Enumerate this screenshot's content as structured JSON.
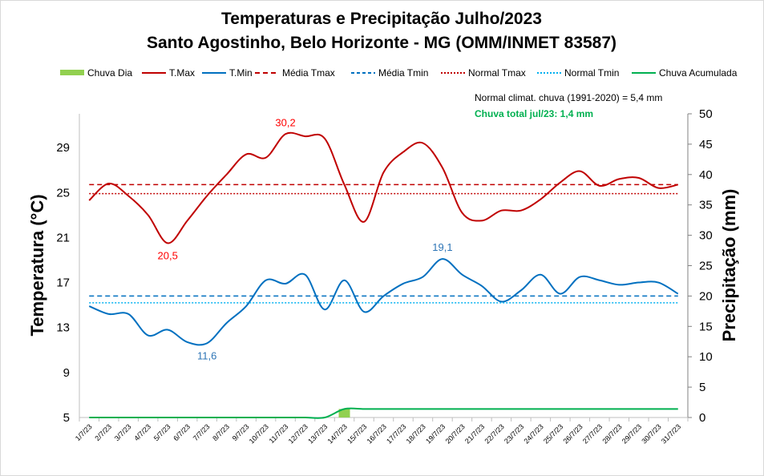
{
  "chart_data": {
    "type": "line",
    "title": "Temperaturas e Precipitação Julho/2023",
    "subtitle": "Santo Agostinho, Belo Horizonte - MG (OMM/INMET 83587)",
    "ylabel": "Temperatura (°C)",
    "y2label": "Precipitação (mm)",
    "ylim": [
      5,
      32
    ],
    "y2lim": [
      0,
      50
    ],
    "yticks": [
      5,
      9,
      13,
      17,
      21,
      25,
      29
    ],
    "y2ticks": [
      0,
      5,
      10,
      15,
      20,
      25,
      30,
      35,
      40,
      45,
      50
    ],
    "categories": [
      "1/7/23",
      "2/7/23",
      "3/7/23",
      "4/7/23",
      "5/7/23",
      "6/7/23",
      "7/7/23",
      "8/7/23",
      "9/7/23",
      "10/7/23",
      "11/7/23",
      "12/7/23",
      "13/7/23",
      "14/7/23",
      "15/7/23",
      "16/7/23",
      "17/7/23",
      "18/7/23",
      "19/7/23",
      "20/7/23",
      "21/7/23",
      "22/7/23",
      "23/7/23",
      "24/7/23",
      "25/7/23",
      "26/7/23",
      "27/7/23",
      "28/7/23",
      "29/7/23",
      "30/7/23",
      "31/7/23"
    ],
    "series": [
      {
        "name": "Chuva Dia",
        "type": "bar",
        "axis": "right",
        "color": "#92d050",
        "values": [
          0,
          0,
          0,
          0,
          0,
          0,
          0,
          0,
          0,
          0,
          0,
          0,
          0,
          1.4,
          0,
          0,
          0,
          0,
          0,
          0,
          0,
          0,
          0,
          0,
          0,
          0,
          0,
          0,
          0,
          0,
          0
        ]
      },
      {
        "name": "T.Max",
        "type": "line",
        "axis": "left",
        "color": "#c00000",
        "values": [
          24.3,
          25.8,
          24.7,
          23.0,
          20.5,
          22.5,
          24.7,
          26.6,
          28.4,
          28.1,
          30.2,
          30.0,
          29.8,
          25.7,
          22.4,
          26.8,
          28.6,
          29.4,
          27.2,
          23.2,
          22.5,
          23.4,
          23.4,
          24.4,
          25.9,
          26.9,
          25.6,
          26.2,
          26.3,
          25.4,
          25.7
        ]
      },
      {
        "name": "T.Min",
        "type": "line",
        "axis": "left",
        "color": "#0070c0",
        "values": [
          14.9,
          14.2,
          14.2,
          12.3,
          12.8,
          11.7,
          11.6,
          13.4,
          14.9,
          17.2,
          16.9,
          17.7,
          14.6,
          17.2,
          14.4,
          15.8,
          16.9,
          17.5,
          19.1,
          17.7,
          16.7,
          15.3,
          16.3,
          17.7,
          16.0,
          17.5,
          17.2,
          16.8,
          17.0,
          17.0,
          16.0
        ]
      },
      {
        "name": "Média Tmax",
        "type": "hline",
        "axis": "left",
        "color": "#c00000",
        "value": 25.7
      },
      {
        "name": "Média Tmin",
        "type": "hline",
        "axis": "left",
        "color": "#0070c0",
        "value": 15.8
      },
      {
        "name": "Normal Tmax",
        "type": "hline",
        "axis": "left",
        "color": "#c00000",
        "value": 24.9
      },
      {
        "name": "Normal Tmin",
        "type": "hline",
        "axis": "left",
        "color": "#00b0f0",
        "value": 15.2
      },
      {
        "name": "Chuva Acumulada",
        "type": "line",
        "axis": "right",
        "color": "#00b050",
        "values": [
          0,
          0,
          0,
          0,
          0,
          0,
          0,
          0,
          0,
          0,
          0,
          0,
          0,
          1.4,
          1.4,
          1.4,
          1.4,
          1.4,
          1.4,
          1.4,
          1.4,
          1.4,
          1.4,
          1.4,
          1.4,
          1.4,
          1.4,
          1.4,
          1.4,
          1.4,
          1.4
        ]
      }
    ],
    "data_labels": [
      {
        "series": "T.Max",
        "index": 4,
        "text": "20,5"
      },
      {
        "series": "T.Max",
        "index": 10,
        "text": "30,2"
      },
      {
        "series": "T.Min",
        "index": 6,
        "text": "11,6"
      },
      {
        "series": "T.Min",
        "index": 18,
        "text": "19,1"
      }
    ],
    "annotations": {
      "normal_rain": "Normal climat. chuva (1991-2020) = 5,4 mm",
      "total_rain": "Chuva total jul/23: 1,4 mm"
    },
    "legend_position": "top"
  }
}
